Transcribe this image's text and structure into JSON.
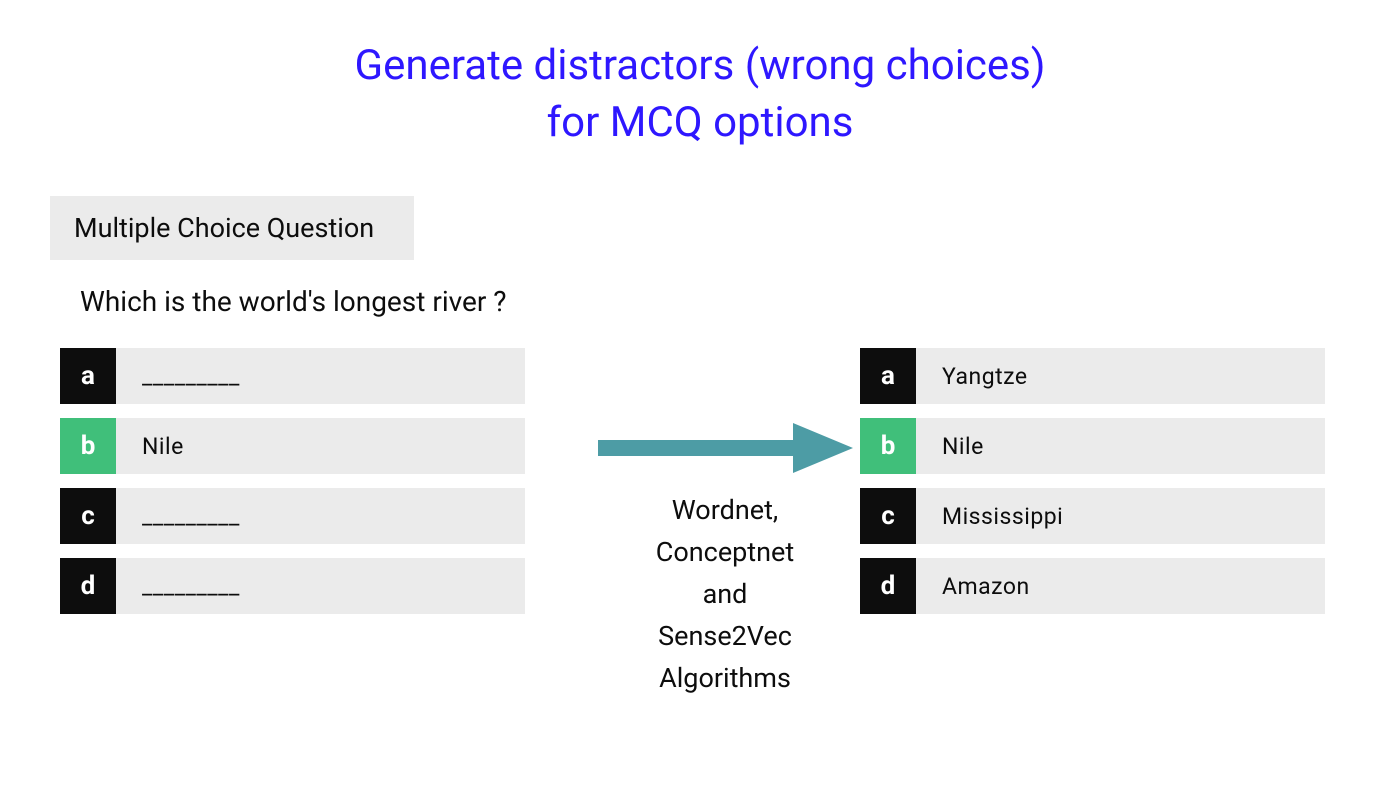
{
  "title": {
    "line1": "Generate distractors (wrong choices)",
    "line2": "for MCQ options",
    "color": "#2e17ff"
  },
  "header": {
    "label": "Multiple Choice Question",
    "bg": "#ebebeb",
    "color": "#0d0d0d"
  },
  "question": "Which is the world's longest river ?",
  "option_style": {
    "text_bg": "#ebebeb",
    "text_color": "#0d0d0d",
    "badge_default_bg": "#0d0d0d",
    "badge_correct_bg": "#40bf7a"
  },
  "left_options": [
    {
      "key": "a",
      "text": "_________",
      "correct": false
    },
    {
      "key": "b",
      "text": "Nile",
      "correct": true
    },
    {
      "key": "c",
      "text": "_________",
      "correct": false
    },
    {
      "key": "d",
      "text": "_________",
      "correct": false
    }
  ],
  "right_options": [
    {
      "key": "a",
      "text": "Yangtze",
      "correct": false
    },
    {
      "key": "b",
      "text": "Nile",
      "correct": true
    },
    {
      "key": "c",
      "text": "Mississippi",
      "correct": false
    },
    {
      "key": "d",
      "text": "Amazon",
      "correct": false
    }
  ],
  "arrow": {
    "color": "#4d9ca5"
  },
  "algorithms": {
    "line1": "Wordnet,",
    "line2": "Conceptnet",
    "line3": "and",
    "line4": "Sense2Vec",
    "line5": "Algorithms"
  }
}
